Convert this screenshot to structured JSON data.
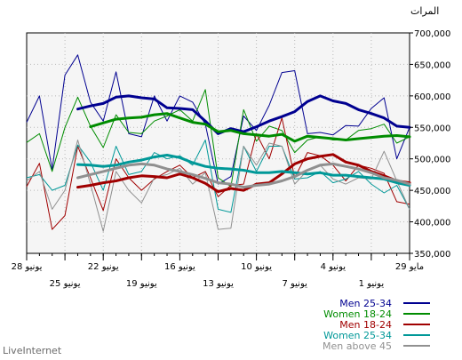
{
  "brand": "LiveInternet",
  "chart_data": {
    "type": "line",
    "ylabel": "المرات",
    "ylim": [
      350000,
      700000
    ],
    "yticks": [
      350000,
      400000,
      450000,
      500000,
      550000,
      600000,
      650000,
      700000
    ],
    "ytick_labels": [
      "350,000",
      "400,000",
      "450,000",
      "500,000",
      "550,000",
      "600,000",
      "650,000",
      "700,000"
    ],
    "x_range_days": [
      0,
      30
    ],
    "xticks_upper": [
      {
        "day": 0,
        "label": "29 مايو"
      },
      {
        "day": 6,
        "label": "4 يونيو"
      },
      {
        "day": 12,
        "label": "10 يونيو"
      },
      {
        "day": 18,
        "label": "16 يونيو"
      },
      {
        "day": 24,
        "label": "22 يونيو"
      },
      {
        "day": 30,
        "label": "28 يونيو"
      }
    ],
    "xticks_lower": [
      {
        "day": 3,
        "label": "1 يونيو"
      },
      {
        "day": 9,
        "label": "7 يونيو"
      },
      {
        "day": 15,
        "label": "13 يونيو"
      },
      {
        "day": 21,
        "label": "19 يونيو"
      },
      {
        "day": 27,
        "label": "25 يونيو"
      }
    ],
    "grid": true,
    "legend_position": "bottom-right",
    "series": [
      {
        "name": "Men 25-34",
        "color": "#000090",
        "raw": [
          550000,
          500000,
          597000,
          580000,
          552000,
          553000,
          538000,
          542000,
          540000,
          640000,
          637000,
          585000,
          545000,
          568000,
          472000,
          460000,
          555000,
          590000,
          600000,
          560000,
          600000,
          535000,
          540000,
          638000,
          560000,
          590000,
          665000,
          633000,
          483000,
          600000,
          558000
        ],
        "smooth": [
          550000,
          552000,
          565000,
          572000,
          578000,
          588000,
          592000,
          600000,
          591000,
          575000,
          567000,
          560000,
          551000,
          543000,
          548000,
          540000,
          560000,
          578000,
          580000,
          581000,
          595000,
          597000,
          600000,
          598000,
          588000,
          584000,
          579000
        ]
      },
      {
        "name": "Women 18-24",
        "color": "#008c00",
        "raw": [
          535000,
          525000,
          555000,
          548000,
          545000,
          530000,
          530000,
          535000,
          530000,
          510000,
          545000,
          552000,
          528000,
          578000,
          456000,
          470000,
          610000,
          560000,
          578000,
          568000,
          560000,
          540000,
          542000,
          570000,
          518000,
          552000,
          598000,
          550000,
          480000,
          540000,
          526000
        ],
        "smooth": [
          535000,
          537000,
          536000,
          534000,
          532000,
          530000,
          532000,
          534000,
          536000,
          528000,
          539000,
          536000,
          538000,
          540000,
          545000,
          543000,
          555000,
          558000,
          565000,
          572000,
          570000,
          566000,
          565000,
          563000,
          557000,
          551000
        ]
      },
      {
        "name": "Men 18-24",
        "color": "#a00000",
        "raw": [
          428000,
          432000,
          477000,
          485000,
          490000,
          465000,
          490000,
          505000,
          510000,
          470000,
          565000,
          500000,
          540000,
          460000,
          458000,
          440000,
          480000,
          470000,
          490000,
          480000,
          468000,
          450000,
          470000,
          500000,
          418000,
          470000,
          520000,
          410000,
          388000,
          493000,
          456000
        ],
        "smooth": [
          462000,
          465000,
          473000,
          480000,
          490000,
          495000,
          507000,
          504000,
          500000,
          492000,
          476000,
          462000,
          460000,
          450000,
          453000,
          448000,
          461000,
          470000,
          476000,
          470000,
          472000,
          473000,
          470000,
          465000,
          462000,
          458000,
          455000
        ]
      },
      {
        "name": "Women 25-34",
        "color": "#009898",
        "raw": [
          420000,
          458000,
          446000,
          460000,
          480000,
          468000,
          462000,
          480000,
          470000,
          468000,
          520000,
          520000,
          480000,
          520000,
          415000,
          420000,
          530000,
          490000,
          505000,
          500000,
          510000,
          480000,
          475000,
          520000,
          450000,
          495000,
          522000,
          458000,
          450000,
          475000,
          470000
        ],
        "smooth": [
          458000,
          462000,
          468000,
          470000,
          472000,
          474000,
          474000,
          478000,
          476000,
          478000,
          480000,
          478000,
          478000,
          482000,
          484000,
          485000,
          488000,
          494000,
          502000,
          506000,
          503000,
          498000,
          495000,
          490000,
          488000,
          490000,
          491000
        ]
      },
      {
        "name": "Men above 45",
        "color": "#909090",
        "raw": [
          420000,
          465000,
          512000,
          468000,
          470000,
          460000,
          468000,
          490000,
          482000,
          460000,
          520000,
          525000,
          490000,
          520000,
          390000,
          388000,
          478000,
          460000,
          485000,
          475000,
          470000,
          430000,
          450000,
          480000,
          385000,
          460000,
          530000,
          450000,
          420000,
          480000,
          465000
        ],
        "smooth": [
          460000,
          466000,
          470000,
          478000,
          484000,
          488000,
          492000,
          490000,
          482000,
          472000,
          465000,
          460000,
          458000,
          455000,
          460000,
          462000,
          469000,
          475000,
          480000,
          484000,
          490000,
          492000,
          490000,
          485000,
          480000,
          475000,
          470000
        ]
      }
    ]
  }
}
